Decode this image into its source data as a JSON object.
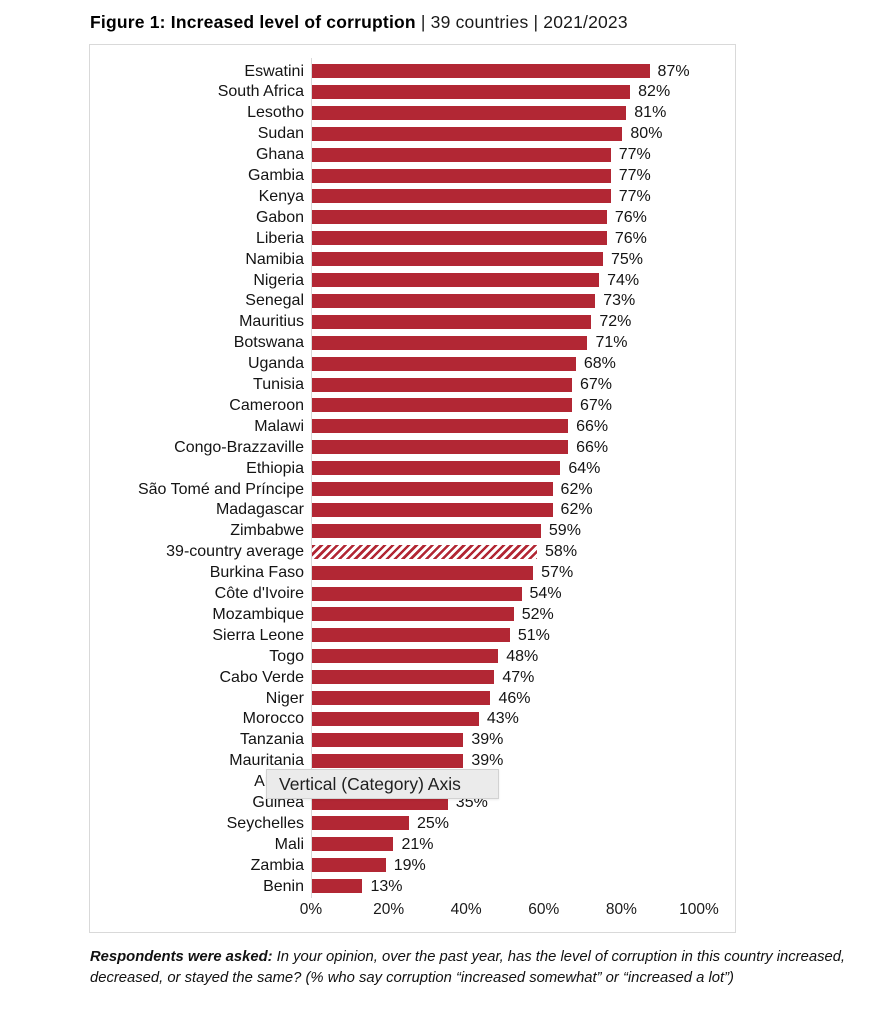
{
  "title": {
    "bold": "Figure 1: Increased level of corruption",
    "rest": " | 39 countries | 2021/2023"
  },
  "tooltip": {
    "text": "Vertical (Category) Axis"
  },
  "caption": {
    "bold": "Respondents were asked:",
    "text": " In your opinion, over the past year, has the level of corruption in this country increased, decreased, or stayed the same? (% who say corruption “increased somewhat” or “increased a lot”)"
  },
  "chart_data": {
    "type": "bar",
    "orientation": "horizontal",
    "title": "Figure 1: Increased level of corruption | 39 countries | 2021/2023",
    "xlabel": "",
    "ylabel": "",
    "xlim": [
      0,
      100
    ],
    "xticks": [
      "0%",
      "20%",
      "40%",
      "60%",
      "80%",
      "100%"
    ],
    "grid": false,
    "bar_color": "#B22734",
    "axis_line_color": "#d9d9d9",
    "rows": [
      {
        "label": "Eswatini",
        "value": 87,
        "display": "87%",
        "hatched": false
      },
      {
        "label": "South Africa",
        "value": 82,
        "display": "82%",
        "hatched": false
      },
      {
        "label": "Lesotho",
        "value": 81,
        "display": "81%",
        "hatched": false
      },
      {
        "label": "Sudan",
        "value": 80,
        "display": "80%",
        "hatched": false
      },
      {
        "label": "Ghana",
        "value": 77,
        "display": "77%",
        "hatched": false
      },
      {
        "label": "Gambia",
        "value": 77,
        "display": "77%",
        "hatched": false
      },
      {
        "label": "Kenya",
        "value": 77,
        "display": "77%",
        "hatched": false
      },
      {
        "label": "Gabon",
        "value": 76,
        "display": "76%",
        "hatched": false
      },
      {
        "label": "Liberia",
        "value": 76,
        "display": "76%",
        "hatched": false
      },
      {
        "label": "Namibia",
        "value": 75,
        "display": "75%",
        "hatched": false
      },
      {
        "label": "Nigeria",
        "value": 74,
        "display": "74%",
        "hatched": false
      },
      {
        "label": "Senegal",
        "value": 73,
        "display": "73%",
        "hatched": false
      },
      {
        "label": "Mauritius",
        "value": 72,
        "display": "72%",
        "hatched": false
      },
      {
        "label": "Botswana",
        "value": 71,
        "display": "71%",
        "hatched": false
      },
      {
        "label": "Uganda",
        "value": 68,
        "display": "68%",
        "hatched": false
      },
      {
        "label": "Tunisia",
        "value": 67,
        "display": "67%",
        "hatched": false
      },
      {
        "label": "Cameroon",
        "value": 67,
        "display": "67%",
        "hatched": false
      },
      {
        "label": "Malawi",
        "value": 66,
        "display": "66%",
        "hatched": false
      },
      {
        "label": "Congo-Brazzaville",
        "value": 66,
        "display": "66%",
        "hatched": false
      },
      {
        "label": "Ethiopia",
        "value": 64,
        "display": "64%",
        "hatched": false
      },
      {
        "label": "São Tomé and Príncipe",
        "value": 62,
        "display": "62%",
        "hatched": false
      },
      {
        "label": "Madagascar",
        "value": 62,
        "display": "62%",
        "hatched": false
      },
      {
        "label": "Zimbabwe",
        "value": 59,
        "display": "59%",
        "hatched": false
      },
      {
        "label": "39-country average",
        "value": 58,
        "display": "58%",
        "hatched": true
      },
      {
        "label": "Burkina Faso",
        "value": 57,
        "display": "57%",
        "hatched": false
      },
      {
        "label": "Côte d'Ivoire",
        "value": 54,
        "display": "54%",
        "hatched": false
      },
      {
        "label": "Mozambique",
        "value": 52,
        "display": "52%",
        "hatched": false
      },
      {
        "label": "Sierra Leone",
        "value": 51,
        "display": "51%",
        "hatched": false
      },
      {
        "label": "Togo",
        "value": 48,
        "display": "48%",
        "hatched": false
      },
      {
        "label": "Cabo Verde",
        "value": 47,
        "display": "47%",
        "hatched": false
      },
      {
        "label": "Niger",
        "value": 46,
        "display": "46%",
        "hatched": false
      },
      {
        "label": "Morocco",
        "value": 43,
        "display": "43%",
        "hatched": false
      },
      {
        "label": "Tanzania",
        "value": 39,
        "display": "39%",
        "hatched": false
      },
      {
        "label": "Mauritania",
        "value": 39,
        "display": "39%",
        "hatched": false
      },
      {
        "label": "Angola",
        "value": null,
        "display": "",
        "hatched": false,
        "note": "bar and value hidden behind tooltip"
      },
      {
        "label": "Guinea",
        "value": 35,
        "display": "35%",
        "hatched": false
      },
      {
        "label": "Seychelles",
        "value": 25,
        "display": "25%",
        "hatched": false
      },
      {
        "label": "Mali",
        "value": 21,
        "display": "21%",
        "hatched": false
      },
      {
        "label": "Zambia",
        "value": 19,
        "display": "19%",
        "hatched": false
      },
      {
        "label": "Benin",
        "value": 13,
        "display": "13%",
        "hatched": false
      }
    ]
  }
}
